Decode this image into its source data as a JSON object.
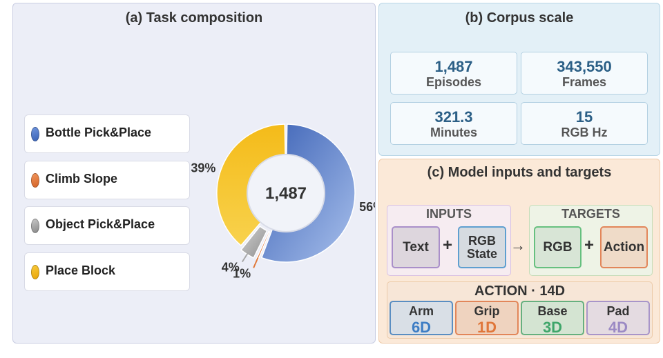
{
  "panel_a": {
    "title": "(a) Task composition",
    "center_label": "1,487",
    "chart_data": {
      "type": "pie",
      "variant": "donut",
      "center_label": "1,487",
      "slices": [
        {
          "label": "Bottle Pick&Place",
          "value": 56,
          "pct_label": "56%",
          "color": "#4a74c9"
        },
        {
          "label": "Climb Slope",
          "value": 1,
          "pct_label": "1%",
          "color": "#e07a3c"
        },
        {
          "label": "Object Pick&Place",
          "value": 4,
          "pct_label": "4%",
          "color": "#a8a8a8"
        },
        {
          "label": "Place Block",
          "value": 39,
          "pct_label": "39%",
          "color": "#f1b50f"
        }
      ]
    }
  },
  "panel_b": {
    "title": "(b) Corpus scale",
    "stats": [
      {
        "value": "1,487",
        "label": "Episodes"
      },
      {
        "value": "343,550",
        "label": "Frames"
      },
      {
        "value": "321.3",
        "label": "Minutes"
      },
      {
        "value": "15",
        "label": "RGB Hz"
      }
    ]
  },
  "panel_c": {
    "title": "(c) Model inputs and targets",
    "inputs": {
      "title": "INPUTS",
      "tokens": [
        "Text",
        "RGB State"
      ],
      "operator": "+"
    },
    "arrow": "→",
    "targets": {
      "title": "TARGETS",
      "tokens": [
        "RGB",
        "Action"
      ],
      "operator": "+"
    },
    "action": {
      "title": "ACTION · 14D",
      "dims": [
        {
          "name": "Arm",
          "value": "6D",
          "color": "#3d7dc4"
        },
        {
          "name": "Grip",
          "value": "1D",
          "color": "#e0763a"
        },
        {
          "name": "Base",
          "value": "3D",
          "color": "#3fa66a"
        },
        {
          "name": "Pad",
          "value": "4D",
          "color": "#9b8ac4"
        }
      ]
    }
  }
}
